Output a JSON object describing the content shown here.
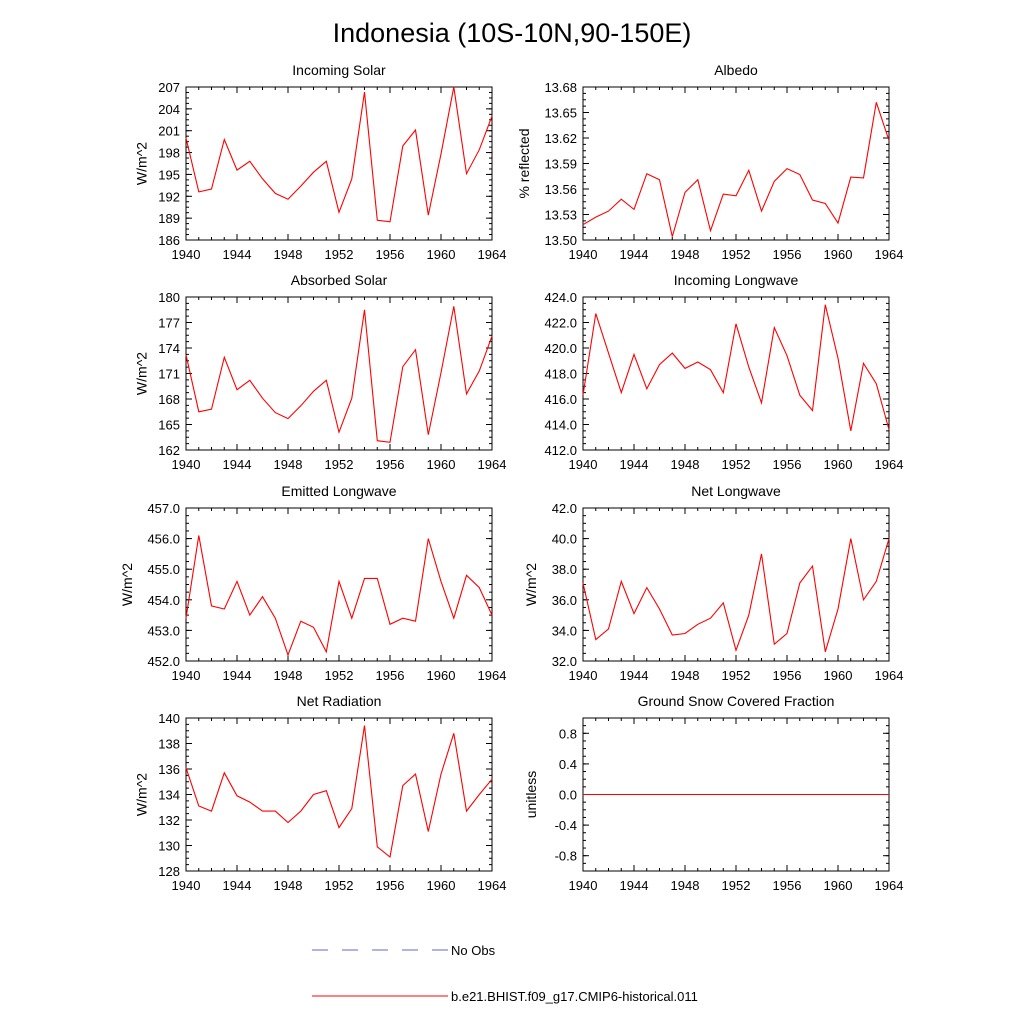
{
  "figure": {
    "title": "Indonesia (10S-10N,90-150E)"
  },
  "legend": [
    {
      "label": "No Obs",
      "color": "#6666cc",
      "style": "dashed"
    },
    {
      "label": "b.e21.BHIST.f09_g17.CMIP6-historical.011",
      "color": "#ff0000",
      "style": "solid"
    }
  ],
  "colors": {
    "series": "#ff0000",
    "obs": "#6666cc",
    "axes": "#000000"
  },
  "chart_data": [
    {
      "type": "line",
      "title": "Incoming Solar",
      "ylabel": "W/m^2",
      "xlim": [
        1940,
        1964
      ],
      "ylim": [
        186,
        207
      ],
      "xticks": [
        "1940",
        "1944",
        "1948",
        "1952",
        "1956",
        "1960",
        "1964"
      ],
      "yticks": [
        "186",
        "189",
        "192",
        "195",
        "198",
        "201",
        "204",
        "207"
      ],
      "series": [
        {
          "color": "#ff0000",
          "x": [
            1940,
            1941,
            1942,
            1943,
            1944,
            1945,
            1946,
            1947,
            1948,
            1949,
            1950,
            1951,
            1952,
            1953,
            1954,
            1955,
            1956,
            1957,
            1958,
            1959,
            1960,
            1961,
            1962,
            1963,
            1964
          ],
          "values": [
            200.0,
            192.6,
            193.0,
            199.8,
            195.6,
            196.8,
            194.4,
            192.4,
            191.6,
            193.4,
            195.3,
            196.8,
            189.8,
            194.4,
            206.3,
            188.7,
            188.5,
            198.9,
            201.1,
            189.4,
            197.8,
            207.0,
            195.1,
            198.4,
            203.0
          ]
        }
      ]
    },
    {
      "type": "line",
      "title": "Albedo",
      "ylabel": "% reflected",
      "xlim": [
        1940,
        1964
      ],
      "ylim": [
        13.5,
        13.68
      ],
      "xticks": [
        "1940",
        "1944",
        "1948",
        "1952",
        "1956",
        "1960",
        "1964"
      ],
      "yticks": [
        "13.50",
        "13.53",
        "13.56",
        "13.59",
        "13.62",
        "13.65",
        "13.68"
      ],
      "series": [
        {
          "color": "#ff0000",
          "x": [
            1940,
            1941,
            1942,
            1943,
            1944,
            1945,
            1946,
            1947,
            1948,
            1949,
            1950,
            1951,
            1952,
            1953,
            1954,
            1955,
            1956,
            1957,
            1958,
            1959,
            1960,
            1961,
            1962,
            1963,
            1964
          ],
          "values": [
            13.518,
            13.527,
            13.534,
            13.548,
            13.536,
            13.578,
            13.571,
            13.504,
            13.556,
            13.571,
            13.511,
            13.554,
            13.552,
            13.582,
            13.534,
            13.569,
            13.584,
            13.577,
            13.547,
            13.543,
            13.52,
            13.574,
            13.573,
            13.662,
            13.617
          ]
        }
      ]
    },
    {
      "type": "line",
      "title": "Absorbed Solar",
      "ylabel": "W/m^2",
      "xlim": [
        1940,
        1964
      ],
      "ylim": [
        162,
        180
      ],
      "xticks": [
        "1940",
        "1944",
        "1948",
        "1952",
        "1956",
        "1960",
        "1964"
      ],
      "yticks": [
        "162",
        "165",
        "168",
        "171",
        "174",
        "177",
        "180"
      ],
      "series": [
        {
          "color": "#ff0000",
          "x": [
            1940,
            1941,
            1942,
            1943,
            1944,
            1945,
            1946,
            1947,
            1948,
            1949,
            1950,
            1951,
            1952,
            1953,
            1954,
            1955,
            1956,
            1957,
            1958,
            1959,
            1960,
            1961,
            1962,
            1963,
            1964
          ],
          "values": [
            173.2,
            166.5,
            166.8,
            172.9,
            169.1,
            170.2,
            168.1,
            166.4,
            165.7,
            167.2,
            168.9,
            170.2,
            164.1,
            168.1,
            178.5,
            163.1,
            162.9,
            171.8,
            173.8,
            163.8,
            171.1,
            178.9,
            168.6,
            171.3,
            175.4
          ]
        }
      ]
    },
    {
      "type": "line",
      "title": "Incoming Longwave",
      "ylabel": "",
      "xlim": [
        1940,
        1964
      ],
      "ylim": [
        412,
        424
      ],
      "xticks": [
        "1940",
        "1944",
        "1948",
        "1952",
        "1956",
        "1960",
        "1964"
      ],
      "yticks": [
        "412.0",
        "414.0",
        "416.0",
        "418.0",
        "420.0",
        "422.0",
        "424.0"
      ],
      "series": [
        {
          "color": "#ff0000",
          "x": [
            1940,
            1941,
            1942,
            1943,
            1944,
            1945,
            1946,
            1947,
            1948,
            1949,
            1950,
            1951,
            1952,
            1953,
            1954,
            1955,
            1956,
            1957,
            1958,
            1959,
            1960,
            1961,
            1962,
            1963,
            1964
          ],
          "values": [
            416.3,
            422.7,
            419.6,
            416.5,
            419.5,
            416.8,
            418.7,
            419.6,
            418.4,
            418.9,
            418.3,
            416.5,
            421.9,
            418.5,
            415.7,
            421.6,
            419.4,
            416.3,
            415.1,
            423.4,
            419.2,
            413.5,
            418.8,
            417.2,
            413.6
          ]
        }
      ]
    },
    {
      "type": "line",
      "title": "Emitted Longwave",
      "ylabel": "W/m^2",
      "xlim": [
        1940,
        1964
      ],
      "ylim": [
        452,
        457
      ],
      "xticks": [
        "1940",
        "1944",
        "1948",
        "1952",
        "1956",
        "1960",
        "1964"
      ],
      "yticks": [
        "452.0",
        "453.0",
        "454.0",
        "455.0",
        "456.0",
        "457.0"
      ],
      "series": [
        {
          "color": "#ff0000",
          "x": [
            1940,
            1941,
            1942,
            1943,
            1944,
            1945,
            1946,
            1947,
            1948,
            1949,
            1950,
            1951,
            1952,
            1953,
            1954,
            1955,
            1956,
            1957,
            1958,
            1959,
            1960,
            1961,
            1962,
            1963,
            1964
          ],
          "values": [
            453.4,
            456.1,
            453.8,
            453.7,
            454.6,
            453.5,
            454.1,
            453.4,
            452.2,
            453.3,
            453.1,
            452.3,
            454.6,
            453.4,
            454.7,
            454.7,
            453.2,
            453.4,
            453.3,
            456.0,
            454.6,
            453.4,
            454.8,
            454.4,
            453.5
          ]
        }
      ]
    },
    {
      "type": "line",
      "title": "Net Longwave",
      "ylabel": "W/m^2",
      "xlim": [
        1940,
        1964
      ],
      "ylim": [
        32,
        42
      ],
      "xticks": [
        "1940",
        "1944",
        "1948",
        "1952",
        "1956",
        "1960",
        "1964"
      ],
      "yticks": [
        "32.0",
        "34.0",
        "36.0",
        "38.0",
        "40.0",
        "42.0"
      ],
      "series": [
        {
          "color": "#ff0000",
          "x": [
            1940,
            1941,
            1942,
            1943,
            1944,
            1945,
            1946,
            1947,
            1948,
            1949,
            1950,
            1951,
            1952,
            1953,
            1954,
            1955,
            1956,
            1957,
            1958,
            1959,
            1960,
            1961,
            1962,
            1963,
            1964
          ],
          "values": [
            37.1,
            33.4,
            34.1,
            37.2,
            35.1,
            36.8,
            35.4,
            33.7,
            33.8,
            34.4,
            34.8,
            35.8,
            32.7,
            35.0,
            39.0,
            33.1,
            33.8,
            37.1,
            38.2,
            32.6,
            35.4,
            40.0,
            36.0,
            37.2,
            40.0
          ]
        }
      ]
    },
    {
      "type": "line",
      "title": "Net Radiation",
      "ylabel": "W/m^2",
      "xlim": [
        1940,
        1964
      ],
      "ylim": [
        128,
        140
      ],
      "xticks": [
        "1940",
        "1944",
        "1948",
        "1952",
        "1956",
        "1960",
        "1964"
      ],
      "yticks": [
        "128",
        "130",
        "132",
        "134",
        "136",
        "138",
        "140"
      ],
      "series": [
        {
          "color": "#ff0000",
          "x": [
            1940,
            1941,
            1942,
            1943,
            1944,
            1945,
            1946,
            1947,
            1948,
            1949,
            1950,
            1951,
            1952,
            1953,
            1954,
            1955,
            1956,
            1957,
            1958,
            1959,
            1960,
            1961,
            1962,
            1963,
            1964
          ],
          "values": [
            136.1,
            133.1,
            132.7,
            135.7,
            133.9,
            133.4,
            132.7,
            132.7,
            131.8,
            132.7,
            134.0,
            134.3,
            131.4,
            132.9,
            139.4,
            129.9,
            129.1,
            134.7,
            135.6,
            131.1,
            135.6,
            138.8,
            132.7,
            134.0,
            135.2
          ]
        }
      ]
    },
    {
      "type": "line",
      "title": "Ground Snow Covered Fraction",
      "ylabel": "unitless",
      "xlim": [
        1940,
        1964
      ],
      "ylim": [
        -1.0,
        1.0
      ],
      "xticks": [
        "1940",
        "1944",
        "1948",
        "1952",
        "1956",
        "1960",
        "1964"
      ],
      "yticks": [
        "-0.8",
        "-0.4",
        "0.0",
        "0.4",
        "0.8"
      ],
      "series": [
        {
          "color": "#ff0000",
          "x": [
            1940,
            1964
          ],
          "values": [
            0.0,
            0.0
          ]
        }
      ]
    }
  ]
}
